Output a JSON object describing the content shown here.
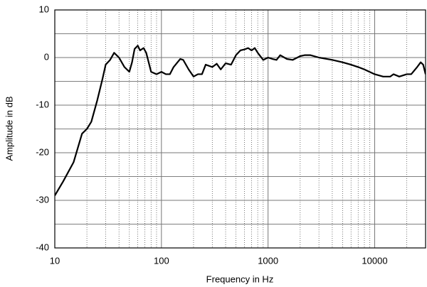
{
  "chart_data": {
    "type": "line",
    "xlabel": "Frequency in Hz",
    "ylabel": "Amplitude in dB",
    "xscale": "log",
    "grid": true,
    "color": "#000000",
    "xlim": [
      10,
      30000
    ],
    "ylim": [
      -40,
      10
    ],
    "xticks": [
      10,
      100,
      1000,
      10000
    ],
    "yticks": [
      10,
      0,
      -10,
      -20,
      -30,
      -40
    ],
    "xminorticks": [
      20,
      30,
      40,
      50,
      60,
      70,
      80,
      90,
      200,
      300,
      400,
      500,
      600,
      700,
      800,
      900,
      2000,
      3000,
      4000,
      5000,
      6000,
      7000,
      8000,
      9000,
      20000
    ],
    "yminorticks": [
      5,
      -5,
      -15,
      -25,
      -35
    ],
    "x": [
      10,
      12,
      15,
      18,
      20,
      22,
      25,
      28,
      30,
      33,
      36,
      40,
      45,
      50,
      53,
      56,
      60,
      63,
      68,
      72,
      80,
      90,
      100,
      110,
      120,
      130,
      150,
      160,
      180,
      200,
      220,
      240,
      260,
      300,
      330,
      360,
      400,
      450,
      500,
      550,
      600,
      650,
      700,
      750,
      800,
      900,
      1000,
      1100,
      1200,
      1300,
      1500,
      1700,
      2000,
      2200,
      2500,
      3000,
      4000,
      5000,
      6000,
      7000,
      8000,
      10000,
      12000,
      14000,
      15000,
      17000,
      20000,
      22000,
      25000,
      27000,
      28500,
      30000
    ],
    "values": [
      -29,
      -26,
      -22,
      -16,
      -15,
      -13.5,
      -9,
      -4.5,
      -1.5,
      -0.5,
      1,
      0,
      -2,
      -3,
      -1,
      1.8,
      2.5,
      1.5,
      2,
      1,
      -3,
      -3.5,
      -3,
      -3.5,
      -3.5,
      -2,
      -0.3,
      -0.5,
      -2.5,
      -4,
      -3.5,
      -3.5,
      -1.5,
      -2,
      -1.3,
      -2.5,
      -1.2,
      -1.5,
      0.5,
      1.5,
      1.7,
      2,
      1.5,
      2,
      1,
      -0.5,
      0,
      -0.3,
      -0.5,
      0.5,
      -0.3,
      -0.5,
      0.3,
      0.5,
      0.5,
      0,
      -0.5,
      -1,
      -1.5,
      -2,
      -2.5,
      -3.5,
      -4,
      -4,
      -3.5,
      -4,
      -3.5,
      -3.5,
      -2,
      -1,
      -1.5,
      -3.5
    ]
  }
}
